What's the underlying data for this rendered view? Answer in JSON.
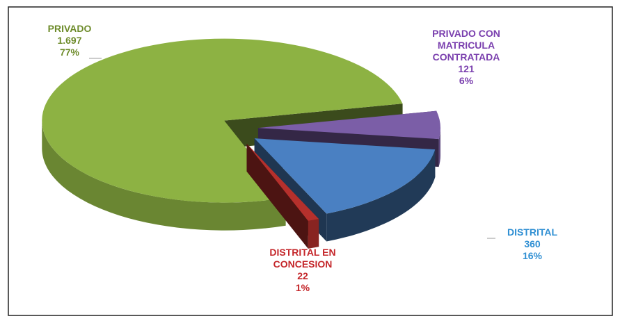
{
  "chart_data": {
    "type": "pie3d",
    "categories": [
      "PRIVADO CON MATRICULA CONTRATADA",
      "DISTRITAL",
      "DISTRITAL EN CONCESION",
      "PRIVADO"
    ],
    "values": [
      121,
      360,
      22,
      1697
    ],
    "value_labels": [
      "121",
      "360",
      "22",
      "1.697"
    ],
    "percent_labels": [
      "6%",
      "16%",
      "1%",
      "77%"
    ],
    "colors": [
      "#7b5ea7",
      "#4a80c2",
      "#b5302c",
      "#8db243"
    ],
    "label_colors": [
      "#7a3fae",
      "#2f8fd3",
      "#c4262a",
      "#6d8b2a"
    ]
  }
}
